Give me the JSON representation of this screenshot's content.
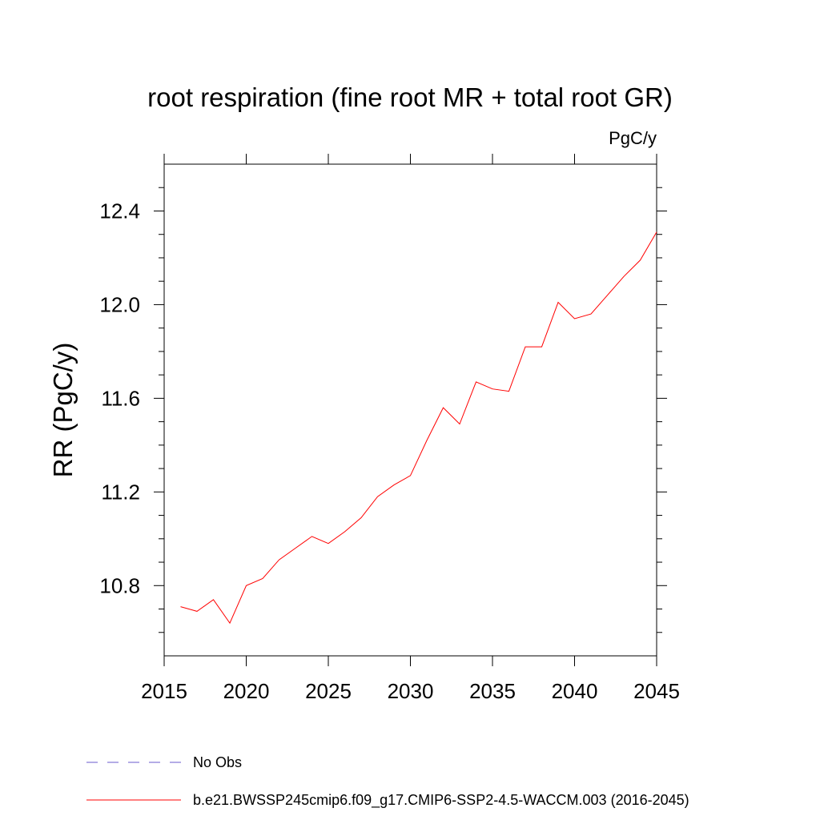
{
  "chart_data": {
    "type": "line",
    "title": "root respiration (fine root MR + total root GR)",
    "units_label": "PgC/y",
    "xlabel": "",
    "ylabel": "RR  (PgC/y)",
    "xlim": [
      2015,
      2045
    ],
    "ylim": [
      10.5,
      12.6
    ],
    "x_ticks": [
      2015,
      2020,
      2025,
      2030,
      2035,
      2040,
      2045
    ],
    "x_tick_labels": [
      "2015",
      "2020",
      "2025",
      "2030",
      "2035",
      "2040",
      "2045"
    ],
    "y_ticks": [
      10.8,
      11.2,
      11.6,
      12.0,
      12.4
    ],
    "y_tick_labels": [
      "10.8",
      "11.2",
      "11.6",
      "12.0",
      "12.4"
    ],
    "grid": false,
    "series": [
      {
        "name": "b.e21.BWSSP245cmip6.f09_g17.CMIP6-SSP2-4.5-WACCM.003 (2016-2045)",
        "color": "#ff0000",
        "style": "solid",
        "x": [
          2016,
          2017,
          2018,
          2019,
          2020,
          2021,
          2022,
          2023,
          2024,
          2025,
          2026,
          2027,
          2028,
          2029,
          2030,
          2031,
          2032,
          2033,
          2034,
          2035,
          2036,
          2037,
          2038,
          2039,
          2040,
          2041,
          2042,
          2043,
          2044,
          2045
        ],
        "y": [
          10.71,
          10.69,
          10.74,
          10.64,
          10.8,
          10.83,
          10.91,
          10.96,
          11.01,
          10.98,
          11.03,
          11.09,
          11.18,
          11.23,
          11.27,
          11.42,
          11.56,
          11.49,
          11.67,
          11.64,
          11.63,
          11.82,
          11.82,
          12.01,
          11.94,
          11.96,
          12.04,
          12.12,
          12.19,
          12.31
        ]
      }
    ],
    "legend": [
      {
        "label": "No Obs",
        "color": "#6a5acd",
        "style": "dashed"
      },
      {
        "label": "b.e21.BWSSP245cmip6.f09_g17.CMIP6-SSP2-4.5-WACCM.003 (2016-2045)",
        "color": "#ff0000",
        "style": "solid"
      }
    ],
    "legend_position": "bottom-left"
  }
}
